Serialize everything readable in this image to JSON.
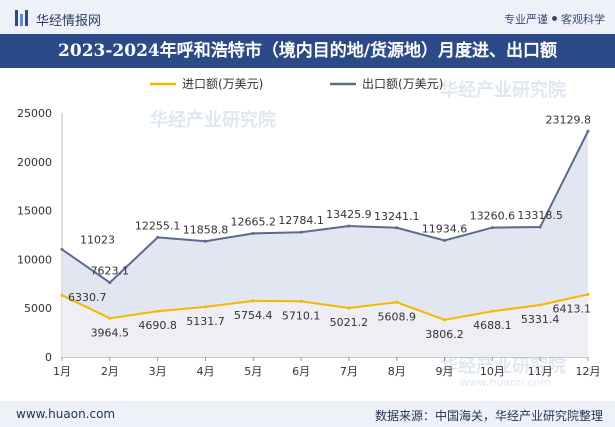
{
  "header": {
    "brand": "华经情报网",
    "slogan_left": "专业严谨",
    "slogan_right": "客观科学",
    "title": "2023-2024年呼和浩特市（境内目的地/货源地）月度进、出口额"
  },
  "footer": {
    "website": "www.huaon.com",
    "source": "数据来源：中国海关，华经产业研究院整理"
  },
  "watermark": {
    "text": "华经产业研究院",
    "url": "www.huaon.com"
  },
  "chart_data": {
    "type": "area",
    "categories": [
      "1月",
      "2月",
      "3月",
      "4月",
      "5月",
      "6月",
      "7月",
      "8月",
      "9月",
      "10月",
      "11月",
      "12月"
    ],
    "series": [
      {
        "name": "进口额(万美元)",
        "color": "#f5b800",
        "values": [
          6330.7,
          3964.5,
          4690.8,
          5131.7,
          5754.4,
          5710.1,
          5021.2,
          5608.9,
          3806.2,
          4688.1,
          5331.4,
          6413.1
        ],
        "labels": [
          "6330.7",
          "3964.5",
          "4690.8",
          "5131.7",
          "5754.4",
          "5710.1",
          "5021.2",
          "5608.9",
          "3806.2",
          "4688.1",
          "5331.4",
          "6413.1"
        ]
      },
      {
        "name": "出口额(万美元)",
        "color": "#5b6b8f",
        "values": [
          11023,
          7623.1,
          12255.1,
          11858.8,
          12665.2,
          12784.1,
          13425.9,
          13241.1,
          11934.6,
          13260.6,
          13318.5,
          23129.8
        ],
        "labels": [
          "11023",
          "7623.1",
          "12255.1",
          "11858.8",
          "12665.2",
          "12784.1",
          "13425.9",
          "13241.1",
          "11934.6",
          "13260.6",
          "13318.5",
          "23129.8"
        ]
      }
    ],
    "yticks": [
      "0",
      "5000",
      "10000",
      "15000",
      "20000",
      "25000"
    ],
    "ylim": [
      0,
      25000
    ],
    "legend_position": "top-center"
  }
}
